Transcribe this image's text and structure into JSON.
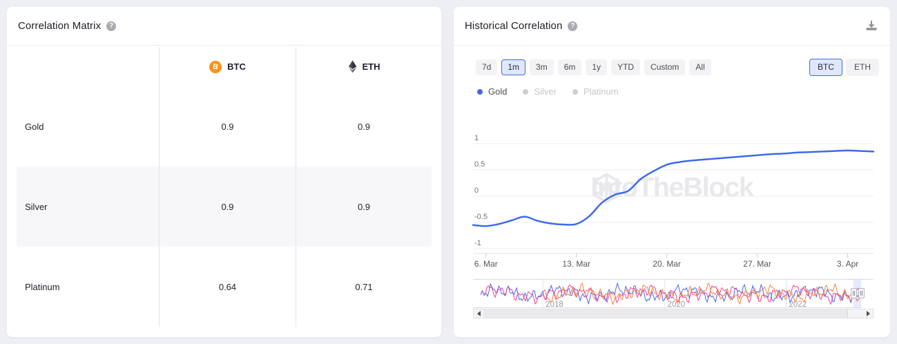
{
  "matrix_panel": {
    "title": "Correlation Matrix",
    "columns": [
      {
        "label": "BTC",
        "icon": "bitcoin-icon"
      },
      {
        "label": "ETH",
        "icon": "ethereum-icon"
      }
    ],
    "rows": [
      {
        "label": "Gold",
        "btc": "0.9",
        "eth": "0.9"
      },
      {
        "label": "Silver",
        "btc": "0.9",
        "eth": "0.9"
      },
      {
        "label": "Platinum",
        "btc": "0.64",
        "eth": "0.71"
      }
    ]
  },
  "history_panel": {
    "title": "Historical Correlation",
    "ranges": [
      {
        "label": "7d",
        "selected": false
      },
      {
        "label": "1m",
        "selected": true
      },
      {
        "label": "3m",
        "selected": false
      },
      {
        "label": "6m",
        "selected": false
      },
      {
        "label": "1y",
        "selected": false
      },
      {
        "label": "YTD",
        "selected": false
      },
      {
        "label": "Custom",
        "selected": false
      },
      {
        "label": "All",
        "selected": false
      }
    ],
    "assets": [
      {
        "label": "BTC",
        "selected": true
      },
      {
        "label": "ETH",
        "selected": false
      }
    ],
    "legend": [
      {
        "label": "Gold",
        "color": "#3d6be8",
        "active": true
      },
      {
        "label": "Silver",
        "color": "#cdcdd2",
        "active": false
      },
      {
        "label": "Platinum",
        "color": "#cdcdd2",
        "active": false
      }
    ],
    "watermark": "IntoTheBlock"
  },
  "chart_data": {
    "type": "line",
    "title": "Historical Correlation (BTC, 1m)",
    "legend": [
      "Gold",
      "Silver",
      "Platinum"
    ],
    "legend_position": "top-left",
    "grid": true,
    "ylim": [
      -1,
      1
    ],
    "y_ticks": [
      1,
      0.5,
      0,
      -0.5,
      -1
    ],
    "y_tick_labels": [
      "1",
      "0.5",
      "0",
      "-0.5",
      "-1"
    ],
    "x_ticks": [
      {
        "label": "6. Mar",
        "i": 1
      },
      {
        "label": "13. Mar",
        "i": 8
      },
      {
        "label": "20. Mar",
        "i": 15
      },
      {
        "label": "27. Mar",
        "i": 22
      },
      {
        "label": "3. Apr",
        "i": 29
      }
    ],
    "x_range": [
      "Mar 5",
      "Apr 5"
    ],
    "series": [
      {
        "name": "Gold",
        "color": "#3d6be8",
        "values": [
          -0.55,
          -0.57,
          -0.53,
          -0.46,
          -0.39,
          -0.47,
          -0.52,
          -0.54,
          -0.53,
          -0.38,
          -0.12,
          0.03,
          0.1,
          0.33,
          0.48,
          0.6,
          0.65,
          0.68,
          0.7,
          0.72,
          0.74,
          0.76,
          0.78,
          0.8,
          0.81,
          0.83,
          0.84,
          0.85,
          0.86,
          0.87,
          0.86,
          0.85
        ]
      }
    ]
  },
  "navigator": {
    "year_lines": [
      {
        "label": "2018",
        "f": 0.18
      },
      {
        "label": "2020",
        "f": 0.494
      },
      {
        "label": "2022",
        "f": 0.807
      }
    ],
    "series": [
      {
        "name": "Gold",
        "color": "#4468e8",
        "seed": 7,
        "start": 0.02
      },
      {
        "name": "Silver",
        "color": "#f0418f",
        "seed": 13,
        "start": 0.025
      },
      {
        "name": "Platinum",
        "color": "#f9813c",
        "seed": 23,
        "start": 0.182
      }
    ],
    "selection": {
      "from": 0.98,
      "to": 1.0
    }
  }
}
